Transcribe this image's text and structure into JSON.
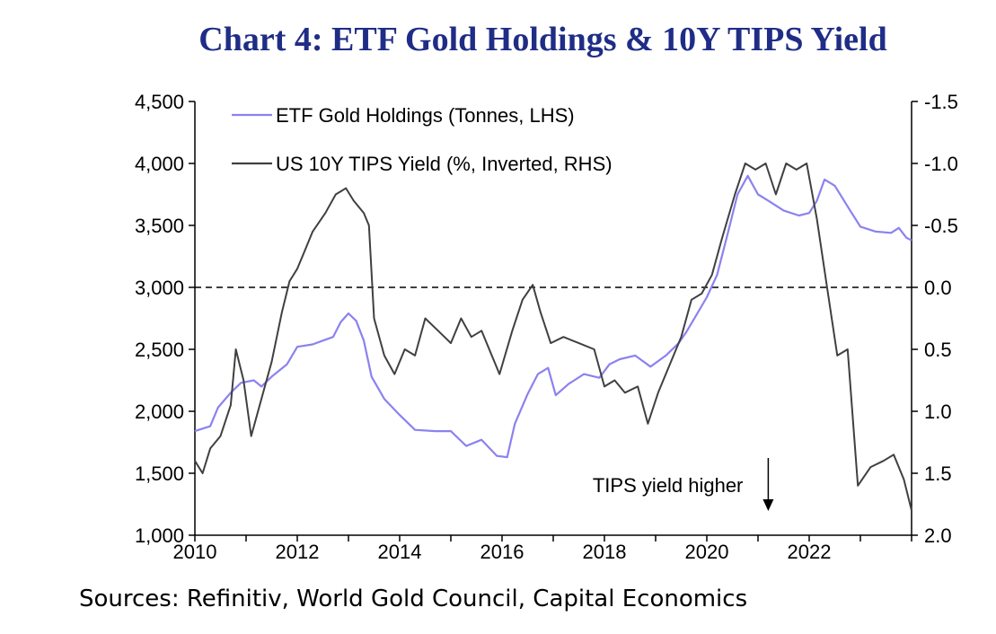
{
  "title": "Chart 4: ETF Gold Holdings & 10Y TIPS Yield",
  "source": "Sources: Refinitiv, World Gold Council, Capital Economics",
  "chart_data": {
    "type": "line",
    "title": "Chart 4: ETF Gold Holdings & 10Y TIPS Yield",
    "xlim": [
      2010,
      2024
    ],
    "x_ticks": [
      "2010",
      "2012",
      "2014",
      "2016",
      "2018",
      "2020",
      "2022"
    ],
    "left_axis": {
      "label": "Tonnes",
      "ylim": [
        1000,
        4500
      ],
      "ticks": [
        "1,000",
        "1,500",
        "2,000",
        "2,500",
        "3,000",
        "3,500",
        "4,000",
        "4,500"
      ]
    },
    "right_axis": {
      "label": "%, inverted",
      "ylim": [
        2.0,
        -1.5
      ],
      "inverted": true,
      "ticks": [
        "2.0",
        "1.5",
        "1.0",
        "0.5",
        "0.0",
        "-0.5",
        "-1.0",
        "-1.5"
      ]
    },
    "reference_line": {
      "axis": "right",
      "value": 0.0,
      "style": "dashed"
    },
    "annotation": {
      "text": "TIPS yield higher",
      "x": 2021.2,
      "arrow": "down"
    },
    "colors": {
      "etf": "#8b82f0",
      "tips": "#404040",
      "title": "#1f2d86"
    },
    "series": [
      {
        "name": "ETF Gold Holdings (Tonnes, LHS)",
        "axis": "left",
        "points": [
          [
            2010.0,
            1840
          ],
          [
            2010.3,
            1880
          ],
          [
            2010.45,
            2030
          ],
          [
            2010.7,
            2150
          ],
          [
            2010.9,
            2230
          ],
          [
            2011.15,
            2250
          ],
          [
            2011.3,
            2200
          ],
          [
            2011.5,
            2280
          ],
          [
            2011.8,
            2380
          ],
          [
            2012.0,
            2520
          ],
          [
            2012.3,
            2540
          ],
          [
            2012.5,
            2570
          ],
          [
            2012.7,
            2600
          ],
          [
            2012.85,
            2720
          ],
          [
            2013.0,
            2790
          ],
          [
            2013.15,
            2730
          ],
          [
            2013.3,
            2570
          ],
          [
            2013.45,
            2280
          ],
          [
            2013.7,
            2100
          ],
          [
            2014.0,
            1970
          ],
          [
            2014.3,
            1850
          ],
          [
            2014.7,
            1840
          ],
          [
            2015.0,
            1840
          ],
          [
            2015.3,
            1720
          ],
          [
            2015.6,
            1770
          ],
          [
            2015.9,
            1640
          ],
          [
            2016.1,
            1630
          ],
          [
            2016.25,
            1900
          ],
          [
            2016.5,
            2140
          ],
          [
            2016.7,
            2300
          ],
          [
            2016.9,
            2350
          ],
          [
            2017.05,
            2130
          ],
          [
            2017.3,
            2220
          ],
          [
            2017.6,
            2300
          ],
          [
            2017.9,
            2270
          ],
          [
            2018.1,
            2380
          ],
          [
            2018.3,
            2420
          ],
          [
            2018.6,
            2450
          ],
          [
            2018.9,
            2360
          ],
          [
            2019.2,
            2450
          ],
          [
            2019.45,
            2550
          ],
          [
            2019.6,
            2640
          ],
          [
            2019.8,
            2780
          ],
          [
            2020.0,
            2920
          ],
          [
            2020.2,
            3100
          ],
          [
            2020.4,
            3420
          ],
          [
            2020.6,
            3750
          ],
          [
            2020.8,
            3900
          ],
          [
            2021.0,
            3750
          ],
          [
            2021.2,
            3700
          ],
          [
            2021.5,
            3620
          ],
          [
            2021.8,
            3580
          ],
          [
            2022.0,
            3600
          ],
          [
            2022.15,
            3700
          ],
          [
            2022.3,
            3870
          ],
          [
            2022.5,
            3820
          ],
          [
            2022.8,
            3620
          ],
          [
            2023.0,
            3490
          ],
          [
            2023.3,
            3450
          ],
          [
            2023.6,
            3440
          ],
          [
            2023.75,
            3480
          ],
          [
            2023.9,
            3400
          ],
          [
            2024.0,
            3380
          ]
        ]
      },
      {
        "name": "US 10Y TIPS Yield (%, Inverted, RHS)",
        "axis": "right",
        "points": [
          [
            2010.0,
            1.4
          ],
          [
            2010.15,
            1.5
          ],
          [
            2010.3,
            1.3
          ],
          [
            2010.5,
            1.2
          ],
          [
            2010.7,
            0.95
          ],
          [
            2010.8,
            0.5
          ],
          [
            2010.95,
            0.75
          ],
          [
            2011.1,
            1.2
          ],
          [
            2011.3,
            0.9
          ],
          [
            2011.5,
            0.6
          ],
          [
            2011.7,
            0.2
          ],
          [
            2011.85,
            -0.05
          ],
          [
            2012.0,
            -0.15
          ],
          [
            2012.15,
            -0.3
          ],
          [
            2012.3,
            -0.45
          ],
          [
            2012.55,
            -0.6
          ],
          [
            2012.75,
            -0.75
          ],
          [
            2012.95,
            -0.8
          ],
          [
            2013.1,
            -0.7
          ],
          [
            2013.3,
            -0.6
          ],
          [
            2013.4,
            -0.5
          ],
          [
            2013.5,
            0.25
          ],
          [
            2013.7,
            0.55
          ],
          [
            2013.9,
            0.7
          ],
          [
            2014.1,
            0.5
          ],
          [
            2014.3,
            0.55
          ],
          [
            2014.5,
            0.25
          ],
          [
            2014.75,
            0.35
          ],
          [
            2015.0,
            0.45
          ],
          [
            2015.2,
            0.25
          ],
          [
            2015.4,
            0.4
          ],
          [
            2015.6,
            0.35
          ],
          [
            2015.8,
            0.55
          ],
          [
            2015.95,
            0.7
          ],
          [
            2016.2,
            0.35
          ],
          [
            2016.4,
            0.1
          ],
          [
            2016.6,
            -0.02
          ],
          [
            2016.75,
            0.2
          ],
          [
            2016.95,
            0.45
          ],
          [
            2017.2,
            0.4
          ],
          [
            2017.5,
            0.45
          ],
          [
            2017.8,
            0.5
          ],
          [
            2018.0,
            0.8
          ],
          [
            2018.2,
            0.75
          ],
          [
            2018.4,
            0.85
          ],
          [
            2018.65,
            0.8
          ],
          [
            2018.85,
            1.1
          ],
          [
            2019.05,
            0.85
          ],
          [
            2019.3,
            0.6
          ],
          [
            2019.5,
            0.4
          ],
          [
            2019.7,
            0.1
          ],
          [
            2019.9,
            0.05
          ],
          [
            2020.1,
            -0.1
          ],
          [
            2020.3,
            -0.4
          ],
          [
            2020.55,
            -0.75
          ],
          [
            2020.75,
            -1.0
          ],
          [
            2020.95,
            -0.95
          ],
          [
            2021.15,
            -1.0
          ],
          [
            2021.35,
            -0.75
          ],
          [
            2021.55,
            -1.0
          ],
          [
            2021.75,
            -0.95
          ],
          [
            2021.95,
            -1.0
          ],
          [
            2022.15,
            -0.55
          ],
          [
            2022.35,
            0.0
          ],
          [
            2022.55,
            0.55
          ],
          [
            2022.75,
            0.5
          ],
          [
            2022.95,
            1.6
          ],
          [
            2023.2,
            1.45
          ],
          [
            2023.45,
            1.4
          ],
          [
            2023.65,
            1.35
          ],
          [
            2023.85,
            1.55
          ],
          [
            2024.0,
            1.8
          ]
        ]
      }
    ]
  }
}
